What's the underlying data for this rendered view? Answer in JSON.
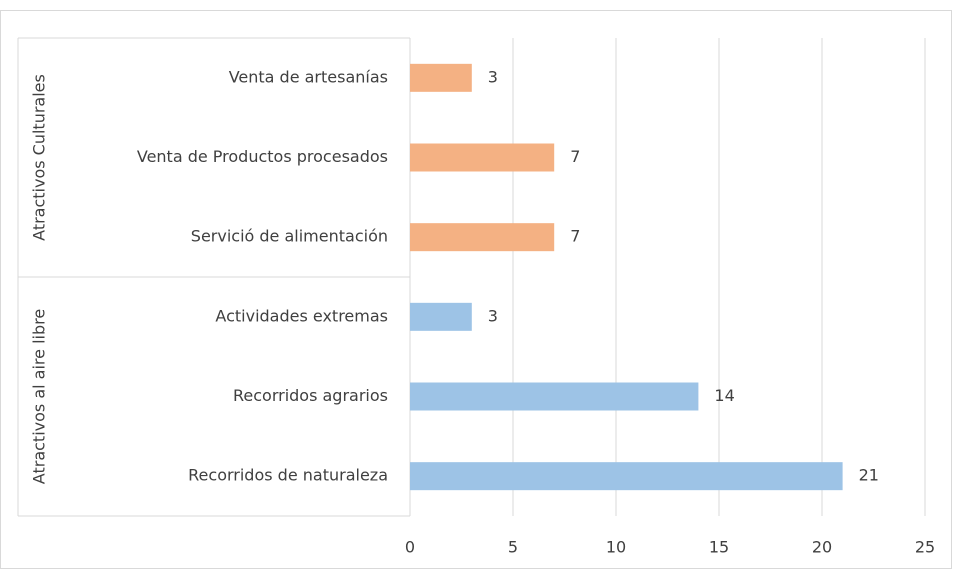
{
  "chart_data": {
    "type": "bar",
    "orientation": "horizontal",
    "series": [
      {
        "name": "Atractivos Culturales",
        "color": "#f4b183",
        "categories": [
          "Venta de artesanías",
          "Venta de Productos procesados",
          "Servició de alimentación"
        ],
        "values": [
          3,
          7,
          7
        ]
      },
      {
        "name": "Atractivos al aire libre",
        "color": "#9dc3e6",
        "categories": [
          "Actividades extremas",
          "Recorridos agrarios",
          "Recorridos de naturaleza"
        ],
        "values": [
          3,
          14,
          21
        ]
      }
    ],
    "xlim": [
      0,
      25
    ],
    "xticks": [
      0,
      5,
      10,
      15,
      20,
      25
    ],
    "grid": true,
    "data_labels": true
  }
}
